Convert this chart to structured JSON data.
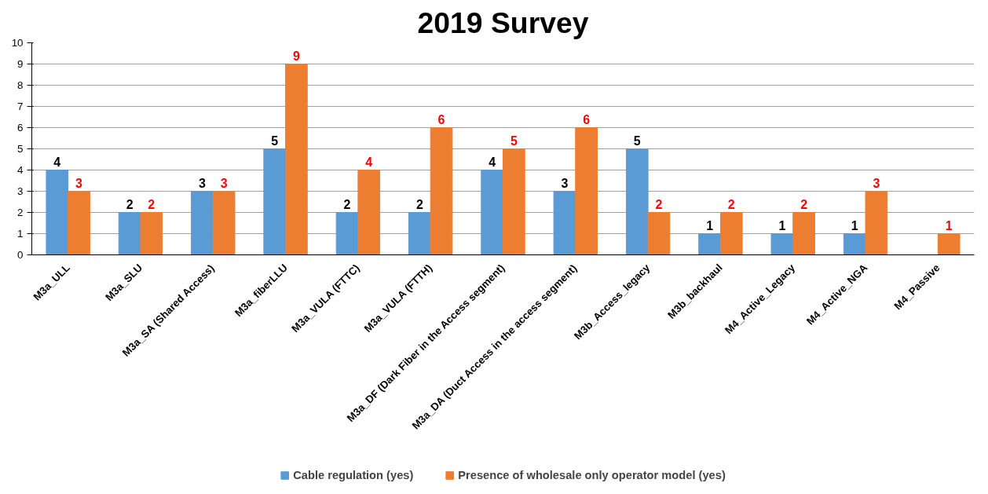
{
  "chart_data": {
    "type": "bar",
    "title": "2019 Survey",
    "categories": [
      "M3a_ULL",
      "M3a_SLU",
      "M3a_SA (Shared Access)",
      "M3a_fiberLLU",
      "M3a_VULA (FTTC)",
      "M3a_VULA (FTTH)",
      "M3a_DF (Dark Fiber in the Access segment)",
      "M3a_DA (Duct Access in the access segment)",
      "M3b_Access_legacy",
      "M3b_backhaul",
      "M4_Active_Legacy",
      "M4_Active_NGA",
      "M4_Passive"
    ],
    "series": [
      {
        "name": "Cable regulation (yes)",
        "color": "#5b9bd5",
        "values": [
          4,
          2,
          3,
          5,
          2,
          2,
          4,
          3,
          5,
          1,
          1,
          1,
          null
        ]
      },
      {
        "name": "Presence of wholesale only operator model (yes)",
        "color": "#ed7d31",
        "values": [
          3,
          2,
          3,
          9,
          4,
          6,
          5,
          6,
          2,
          2,
          2,
          3,
          1
        ]
      }
    ],
    "ylim": [
      0,
      10
    ],
    "yticks": [
      0,
      1,
      2,
      3,
      4,
      5,
      6,
      7,
      8,
      9,
      10
    ],
    "grid": "y",
    "legend": "bottom",
    "data_labels": true
  }
}
